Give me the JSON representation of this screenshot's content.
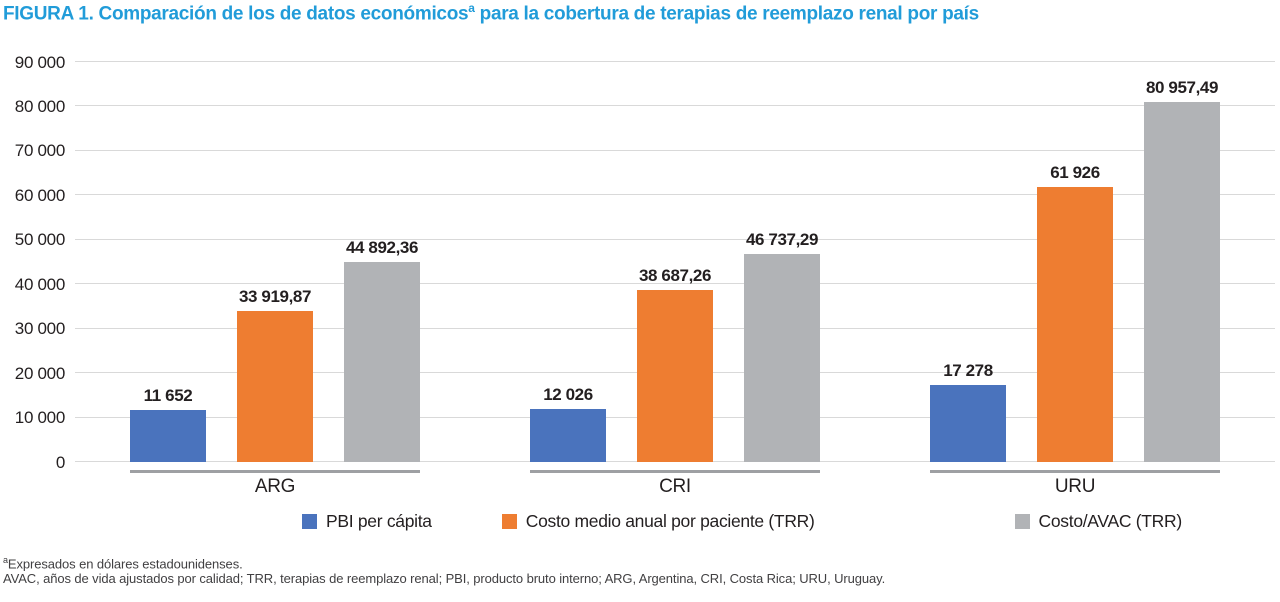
{
  "title": {
    "part1": "FIGURA 1. Comparación de los de datos económicos",
    "sup": "a",
    "part2": " para la cobertura de terapias de reemplazo renal por país"
  },
  "footnotes": {
    "line1_sup": "a",
    "line1_text": "Expresados en dólares estadounidenses.",
    "line2": "AVAC, años de vida ajustados por calidad; TRR, terapias de reemplazo renal; PBI, producto bruto interno; ARG, Argentina, CRI, Costa Rica; URU, Uruguay."
  },
  "colors": {
    "title_blue": "#219CD9",
    "text": "#231F20",
    "gridline": "#D9D9D9",
    "category_rule": "#9EA0A3",
    "footnote_text": "#414042"
  },
  "chart_data": {
    "type": "bar",
    "title": "FIGURA 1. Comparación de los de datos económicosᵃ para la cobertura de terapias de reemplazo renal por país",
    "categories": [
      "ARG",
      "CRI",
      "URU"
    ],
    "series": [
      {
        "name": "PBI per cápita",
        "color": "#4A73BD",
        "values": [
          11652,
          12026,
          17278
        ],
        "value_labels": [
          "11 652",
          "12 026",
          "17 278"
        ]
      },
      {
        "name": "Costo medio anual por paciente (TRR)",
        "color": "#EE7D31",
        "values": [
          33919.87,
          38687.26,
          61926
        ],
        "value_labels": [
          "33 919,87",
          "38 687,26",
          "61 926"
        ]
      },
      {
        "name": "Costo/AVAC (TRR)",
        "color": "#B1B3B6",
        "values": [
          44892.36,
          46737.29,
          80957.49
        ],
        "value_labels": [
          "44 892,36",
          "46 737,29",
          "80 957,49"
        ]
      }
    ],
    "ylim": [
      0,
      90000
    ],
    "yticks": [
      0,
      10000,
      20000,
      30000,
      40000,
      50000,
      60000,
      70000,
      80000,
      90000
    ],
    "ytick_labels": [
      "0",
      "10 000",
      "20 000",
      "30 000",
      "40 000",
      "50 000",
      "60 000",
      "70 000",
      "80 000",
      "90 000"
    ],
    "grid": true,
    "legend_position": "bottom",
    "units_note": "dólares estadounidenses"
  }
}
